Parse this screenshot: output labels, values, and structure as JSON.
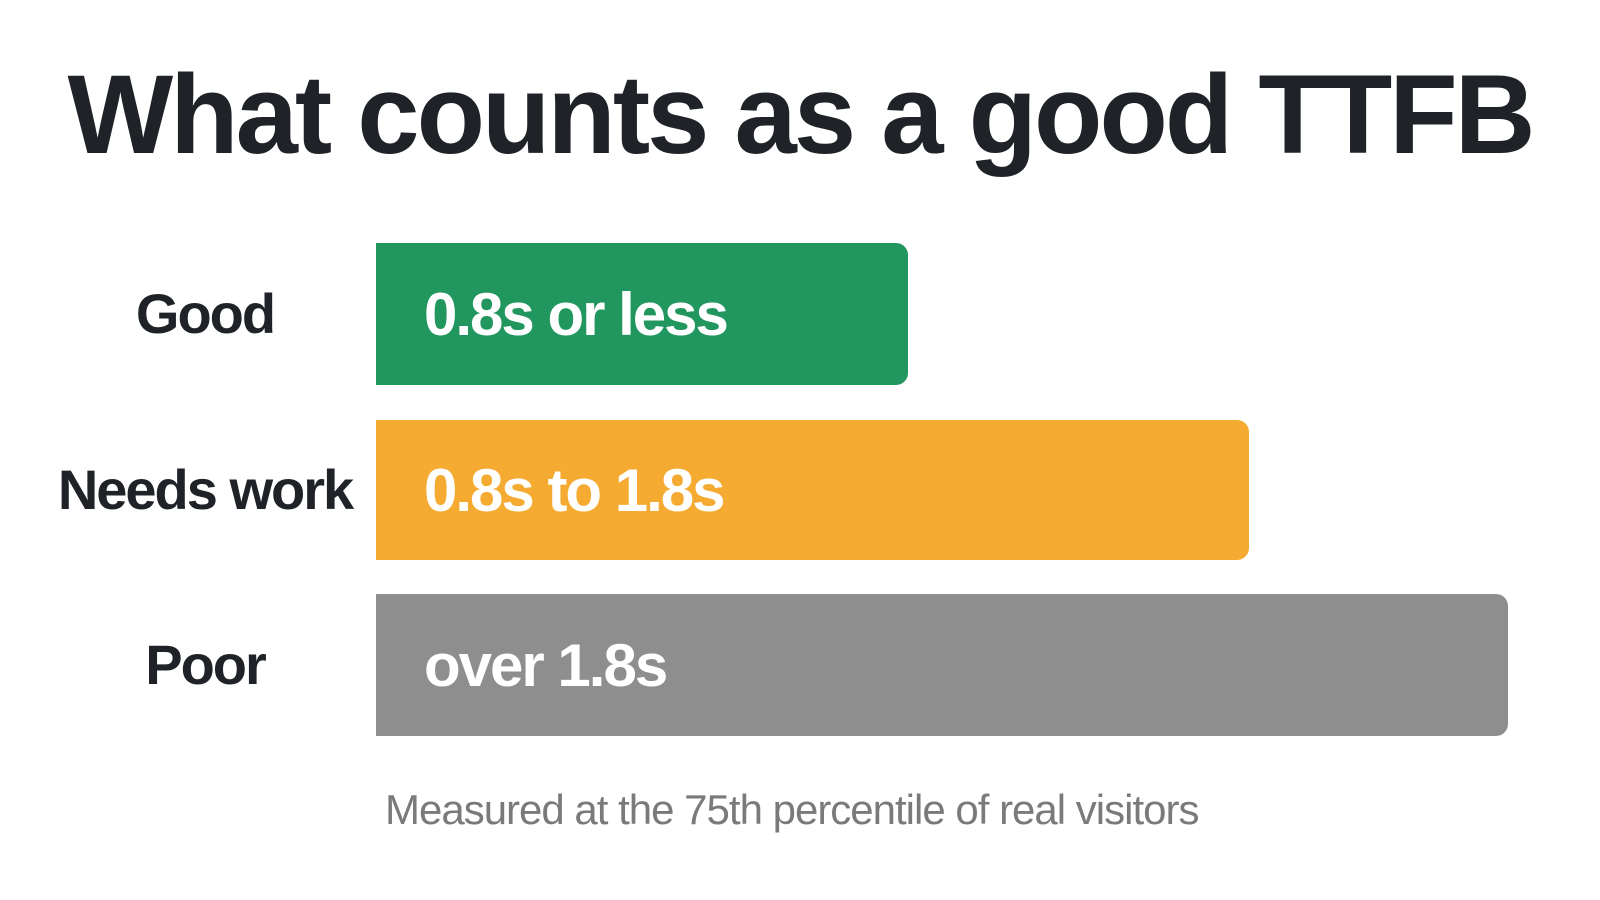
{
  "title": "What counts as a good TTFB",
  "rows": [
    {
      "label": "Good",
      "text": "0.8s or less"
    },
    {
      "label": "Needs work",
      "text": "0.8s to 1.8s"
    },
    {
      "label": "Poor",
      "text": "over 1.8s"
    }
  ],
  "footnote": "Measured at the 75th percentile of real visitors"
}
